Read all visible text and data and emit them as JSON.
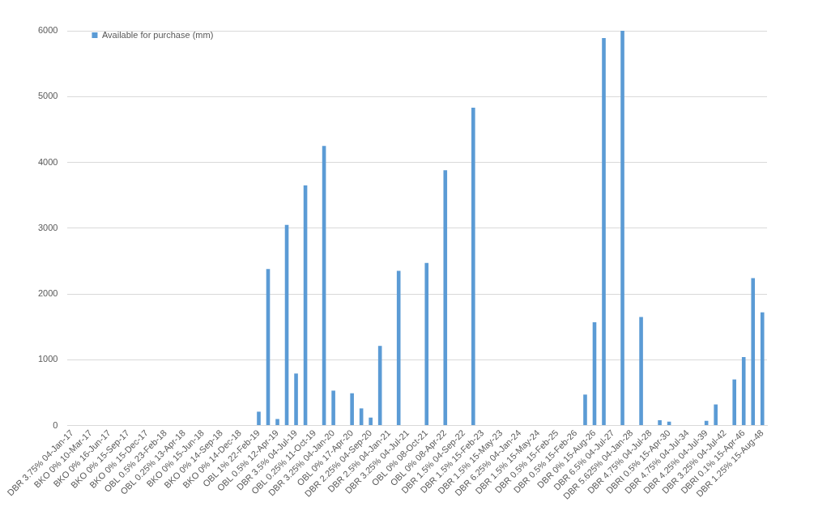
{
  "chart_data": {
    "type": "bar",
    "categories": [
      "DBR 3.75% 04-Jan-17",
      null,
      "BKO 0% 10-Mar-17",
      null,
      "BKO 0% 16-Jun-17",
      null,
      "BKO 0% 15-Sep-17",
      null,
      "BKO 0% 15-Dec-17",
      null,
      "OBL 0.5% 23-Feb-18",
      null,
      "OBL 0.25% 13-Apr-18",
      null,
      "BKO 0% 15-Jun-18",
      null,
      "BKO 0% 14-Sep-18",
      null,
      "BKO 0% 14-Dec-18",
      null,
      "OBL 1% 22-Feb-19",
      null,
      "OBL 0.5% 12-Apr-19",
      null,
      "DBR 3.5% 04-Jul-19",
      null,
      "OBL 0.25% 11-Oct-19",
      null,
      "DBR 3.25% 04-Jan-20",
      null,
      "OBL 0% 17-Apr-20",
      null,
      "DBR 2.25% 04-Sep-20",
      null,
      "DBR 2.5% 04-Jan-21",
      null,
      "DBR 3.25% 04-Jul-21",
      null,
      "OBL 0% 08-Oct-21",
      null,
      "OBL 0% 08-Apr-22",
      null,
      "DBR 1.5% 04-Sep-22",
      null,
      "DBR 1.5% 15-Feb-23",
      null,
      "DBR 1.5% 15-May-23",
      null,
      "DBR 6.25% 04-Jan-24",
      null,
      "DBR 1.5% 15-May-24",
      null,
      "DBR 0.5% 15-Feb-25",
      null,
      "DBR 0.5% 15-Feb-26",
      null,
      "DBR 0% 15-Aug-26",
      null,
      "DBR 6.5% 04-Jul-27",
      null,
      "DBR 5.625% 04-Jan-28",
      null,
      "DBR 4.75% 04-Jul-28",
      null,
      "DBRI 0.5% 15-Apr-30",
      null,
      "DBR 4.75% 04-Jul-34",
      null,
      "DBR 4.25% 04-Jul-39",
      null,
      "DBR 3.25% 04-Jul-42",
      null,
      "DBRI 0.1% 15-Apr-46",
      null,
      "DBR 1.25% 15-Aug-48"
    ],
    "series": [
      {
        "name": "Available for purchase (mm)",
        "color": "#5b9bd5",
        "values": [
          0,
          0,
          0,
          0,
          0,
          0,
          0,
          0,
          0,
          0,
          0,
          0,
          0,
          0,
          0,
          0,
          0,
          0,
          0,
          0,
          210,
          2380,
          100,
          3050,
          790,
          3650,
          0,
          4250,
          530,
          0,
          490,
          260,
          120,
          1210,
          0,
          2350,
          0,
          0,
          2470,
          0,
          3880,
          0,
          0,
          4830,
          0,
          0,
          0,
          0,
          0,
          0,
          0,
          0,
          0,
          0,
          0,
          470,
          1570,
          5890,
          0,
          6000,
          0,
          1650,
          0,
          80,
          60,
          0,
          0,
          0,
          70,
          320,
          0,
          700,
          1040,
          2240,
          1720
        ]
      }
    ],
    "ylim": [
      0,
      6000
    ],
    "yticks": [
      0,
      1000,
      2000,
      3000,
      4000,
      5000,
      6000
    ],
    "grid": "y",
    "legend": "top left"
  }
}
